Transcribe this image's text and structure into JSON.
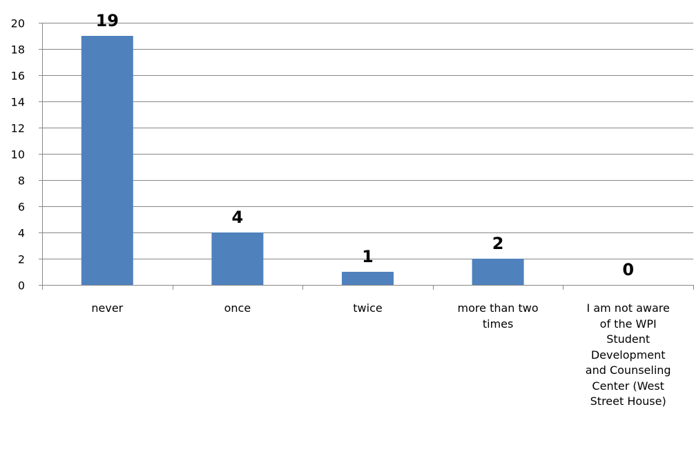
{
  "chart_data": {
    "type": "bar",
    "title": "",
    "xlabel": "",
    "ylabel": "",
    "categories": [
      "never",
      "once",
      "twice",
      "more than two times",
      "I am not aware of the WPI Student Development and Counseling Center (West Street House)"
    ],
    "category_lines": [
      [
        "never"
      ],
      [
        "once"
      ],
      [
        "twice"
      ],
      [
        "more than two",
        "times"
      ],
      [
        "I am not aware",
        "of the WPI",
        "Student",
        "Development",
        "and Counseling",
        "Center (West",
        "Street House)"
      ]
    ],
    "values": [
      19,
      4,
      1,
      2,
      0
    ],
    "data_labels": [
      "19",
      "4",
      "1",
      "2",
      "0"
    ],
    "ylim": [
      0,
      20
    ],
    "yticks": [
      0,
      2,
      4,
      6,
      8,
      10,
      12,
      14,
      16,
      18,
      20
    ],
    "grid": true,
    "legend": "none",
    "bar_color": "#4F81BD",
    "grid_color": "#868686"
  }
}
